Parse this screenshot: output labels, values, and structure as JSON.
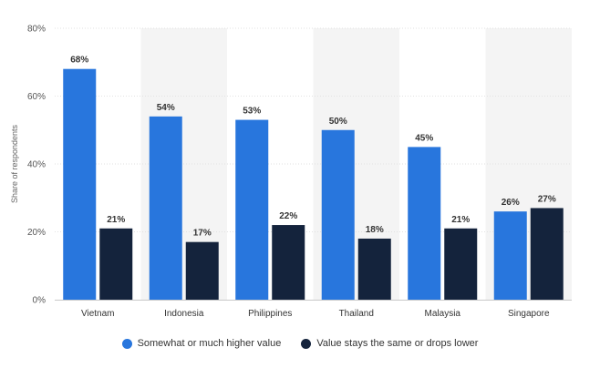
{
  "chart_data": {
    "type": "bar",
    "categories": [
      "Vietnam",
      "Indonesia",
      "Philippines",
      "Thailand",
      "Malaysia",
      "Singapore"
    ],
    "series": [
      {
        "name": "Somewhat or much higher value",
        "values": [
          68,
          54,
          53,
          50,
          45,
          26
        ],
        "color": "#2876dd"
      },
      {
        "name": "Value stays the same or drops lower",
        "values": [
          21,
          17,
          22,
          18,
          21,
          27
        ],
        "color": "#14233c"
      }
    ],
    "title": "",
    "xlabel": "",
    "ylabel": "Share of respondents",
    "ylim": [
      0,
      80
    ],
    "yticks": [
      0,
      20,
      40,
      60,
      80
    ],
    "ytick_labels": [
      "0%",
      "20%",
      "40%",
      "60%",
      "80%"
    ],
    "value_suffix": "%",
    "grid": true,
    "legend_position": "bottom",
    "band_color": "#f4f4f4",
    "grid_color": "#e2e2e2"
  }
}
